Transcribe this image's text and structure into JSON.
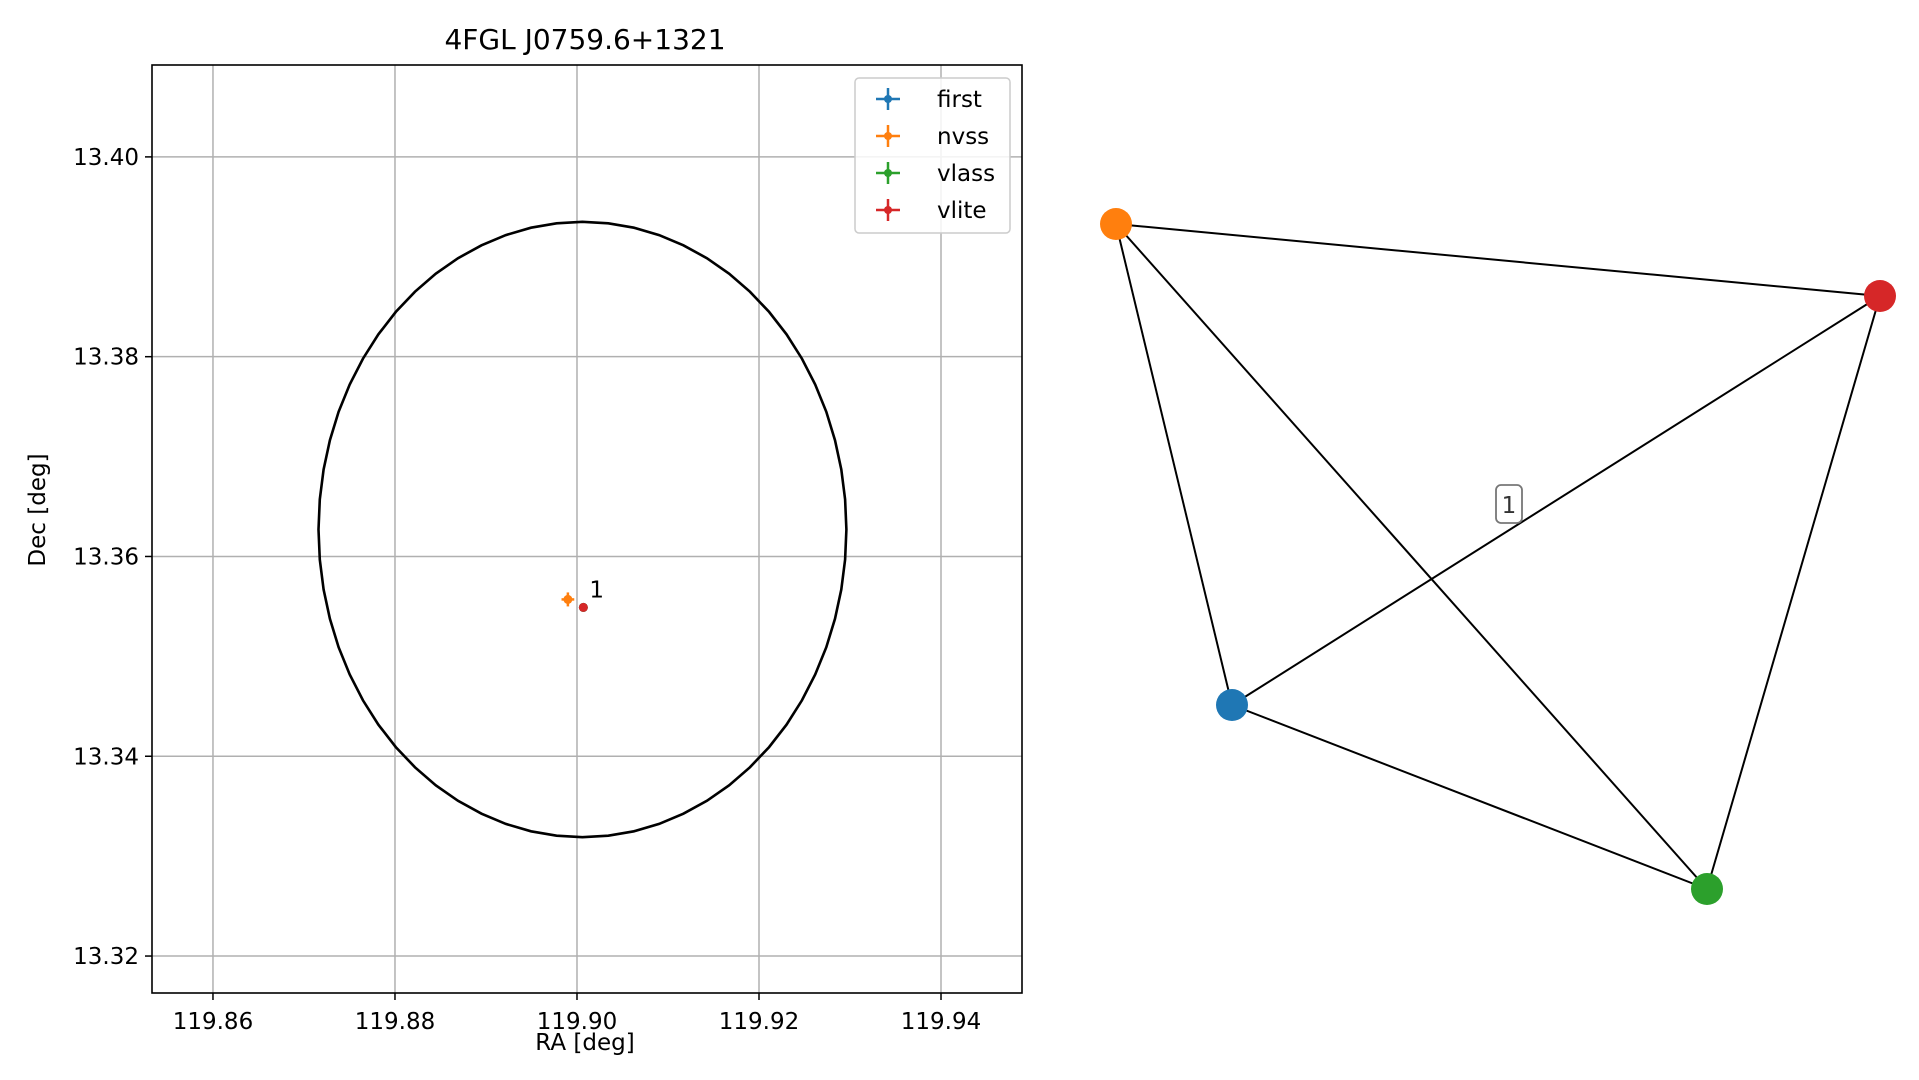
{
  "chart_data": [
    {
      "type": "scatter",
      "title": "4FGL J0759.6+1321",
      "xlabel": "RA [deg]",
      "ylabel": "Dec [deg]",
      "xlim": [
        119.8533,
        119.9489
      ],
      "ylim": [
        13.3163,
        13.4092
      ],
      "xticks": [
        119.86,
        119.88,
        119.9,
        119.92,
        119.94
      ],
      "xtick_labels": [
        "119.86",
        "119.88",
        "119.90",
        "119.92",
        "119.94"
      ],
      "yticks": [
        13.32,
        13.34,
        13.36,
        13.38,
        13.4
      ],
      "ytick_labels": [
        "13.32",
        "13.34",
        "13.36",
        "13.38",
        "13.40"
      ],
      "grid": true,
      "legend_position": "top-right",
      "ellipse": {
        "center": [
          119.9006,
          13.3627
        ],
        "ra_semi_axis": 0.029,
        "dec_semi_axis": 0.0308,
        "color": "#000000"
      },
      "series": [
        {
          "name": "first",
          "color": "#1f77b4",
          "points": [
            {
              "x": 119.9007,
              "y": 13.3549
            }
          ]
        },
        {
          "name": "nvss",
          "color": "#ff7f0e",
          "points": [
            {
              "x": 119.899,
              "y": 13.3557,
              "xerr": 0.0007,
              "yerr": 0.0007
            }
          ]
        },
        {
          "name": "vlass",
          "color": "#2ca02c",
          "points": [
            {
              "x": 119.9007,
              "y": 13.3549
            }
          ]
        },
        {
          "name": "vlite",
          "color": "#d62728",
          "points": [
            {
              "x": 119.9007,
              "y": 13.3549
            }
          ]
        }
      ],
      "annotations": [
        {
          "text": "1",
          "x": 119.9007,
          "y": 13.3549
        }
      ]
    },
    {
      "type": "network",
      "nodes": [
        {
          "id": "first",
          "color": "#1f77b4"
        },
        {
          "id": "nvss",
          "color": "#ff7f0e"
        },
        {
          "id": "vlass",
          "color": "#2ca02c"
        },
        {
          "id": "vlite",
          "color": "#d62728"
        }
      ],
      "edges": [
        [
          "nvss",
          "vlite"
        ],
        [
          "nvss",
          "first"
        ],
        [
          "nvss",
          "vlass"
        ],
        [
          "first",
          "vlite"
        ],
        [
          "first",
          "vlass"
        ],
        [
          "vlite",
          "vlass"
        ]
      ],
      "label_box": {
        "text": "1"
      }
    }
  ]
}
